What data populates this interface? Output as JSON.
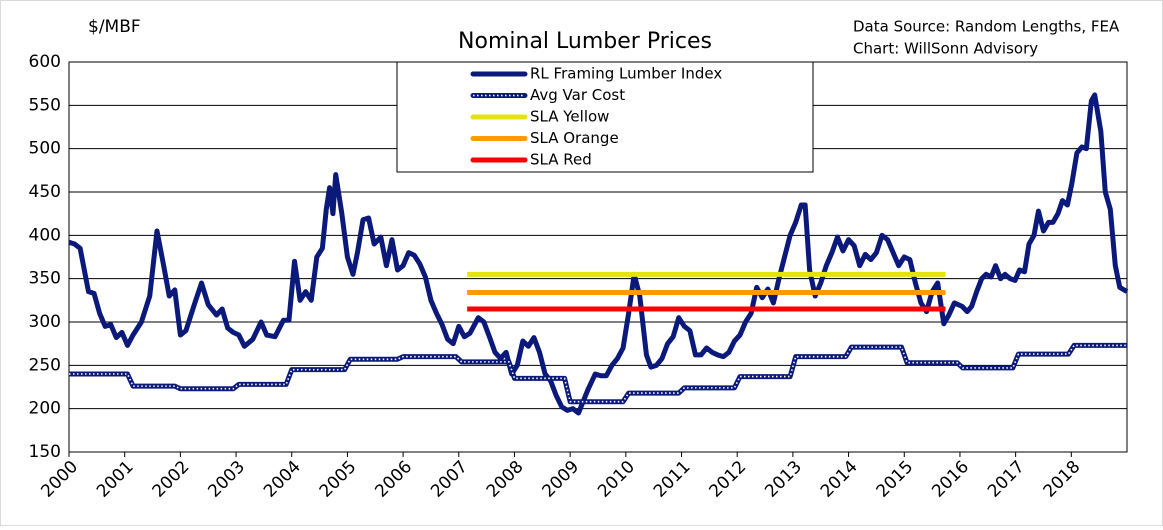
{
  "chart_data": {
    "type": "line",
    "title": "Nominal Lumber Prices",
    "y_axis_label": "$/MBF",
    "source_lines": [
      "Data Source: Random Lengths, FEA",
      "Chart:  WillSonn Advisory"
    ],
    "xlim": [
      2000,
      2019
    ],
    "xticks": [
      2000,
      2001,
      2002,
      2003,
      2004,
      2005,
      2006,
      2007,
      2008,
      2009,
      2010,
      2011,
      2012,
      2013,
      2014,
      2015,
      2016,
      2017,
      2018
    ],
    "ylim": [
      150,
      600
    ],
    "yticks": [
      150,
      200,
      250,
      300,
      350,
      400,
      450,
      500,
      550,
      600
    ],
    "grid": true,
    "series": [
      {
        "name": "RL Framing Lumber Index",
        "color": "#0b1a7a",
        "style": "solid",
        "width": 5,
        "x": [
          2000.0,
          2000.1,
          2000.2,
          2000.35,
          2000.45,
          2000.55,
          2000.65,
          2000.75,
          2000.85,
          2000.95,
          2001.05,
          2001.15,
          2001.3,
          2001.45,
          2001.58,
          2001.7,
          2001.8,
          2001.9,
          2002.0,
          2002.1,
          2002.25,
          2002.38,
          2002.5,
          2002.65,
          2002.75,
          2002.85,
          2002.95,
          2003.05,
          2003.15,
          2003.3,
          2003.45,
          2003.55,
          2003.7,
          2003.85,
          2003.95,
          2004.05,
          2004.15,
          2004.25,
          2004.35,
          2004.45,
          2004.55,
          2004.62,
          2004.68,
          2004.74,
          2004.79,
          2004.9,
          2005.0,
          2005.1,
          2005.18,
          2005.28,
          2005.38,
          2005.48,
          2005.6,
          2005.7,
          2005.8,
          2005.9,
          2006.0,
          2006.1,
          2006.2,
          2006.3,
          2006.4,
          2006.5,
          2006.6,
          2006.7,
          2006.8,
          2006.9,
          2007.0,
          2007.1,
          2007.2,
          2007.35,
          2007.45,
          2007.55,
          2007.65,
          2007.75,
          2007.85,
          2007.95,
          2008.05,
          2008.15,
          2008.25,
          2008.35,
          2008.45,
          2008.55,
          2008.65,
          2008.75,
          2008.85,
          2008.95,
          2009.05,
          2009.15,
          2009.32,
          2009.45,
          2009.55,
          2009.65,
          2009.75,
          2009.85,
          2009.95,
          2010.05,
          2010.15,
          2010.25,
          2010.37,
          2010.45,
          2010.55,
          2010.65,
          2010.75,
          2010.85,
          2010.95,
          2011.05,
          2011.15,
          2011.25,
          2011.35,
          2011.45,
          2011.55,
          2011.65,
          2011.75,
          2011.85,
          2011.95,
          2012.05,
          2012.15,
          2012.25,
          2012.35,
          2012.45,
          2012.55,
          2012.65,
          2012.75,
          2012.85,
          2012.95,
          2013.05,
          2013.15,
          2013.22,
          2013.3,
          2013.4,
          2013.5,
          2013.6,
          2013.7,
          2013.8,
          2013.9,
          2014.0,
          2014.1,
          2014.2,
          2014.3,
          2014.4,
          2014.5,
          2014.6,
          2014.7,
          2014.8,
          2014.9,
          2015.0,
          2015.1,
          2015.2,
          2015.3,
          2015.4,
          2015.5,
          2015.6,
          2015.71,
          2015.8,
          2015.9,
          2016.04,
          2016.13,
          2016.21,
          2016.3,
          2016.39,
          2016.47,
          2016.56,
          2016.64,
          2016.73,
          2016.81,
          2016.9,
          2016.99,
          2017.07,
          2017.16,
          2017.24,
          2017.33,
          2017.41,
          2017.5,
          2017.59,
          2017.67,
          2017.76,
          2017.84,
          2017.93,
          2018.01,
          2018.1,
          2018.19,
          2018.27,
          2018.36,
          2018.42,
          2018.53,
          2018.61,
          2018.7,
          2018.79,
          2018.87,
          2019.0
        ],
        "values": [
          392,
          390,
          385,
          335,
          333,
          310,
          295,
          297,
          282,
          288,
          273,
          285,
          300,
          330,
          405,
          365,
          330,
          337,
          285,
          290,
          320,
          345,
          320,
          308,
          315,
          293,
          288,
          285,
          272,
          280,
          300,
          285,
          283,
          302,
          302,
          370,
          325,
          335,
          325,
          375,
          385,
          430,
          455,
          425,
          470,
          425,
          375,
          355,
          380,
          418,
          420,
          390,
          398,
          365,
          395,
          360,
          365,
          380,
          377,
          367,
          352,
          325,
          310,
          297,
          280,
          275,
          295,
          283,
          287,
          305,
          300,
          283,
          265,
          258,
          265,
          240,
          250,
          278,
          272,
          282,
          265,
          240,
          232,
          215,
          202,
          198,
          200,
          195,
          222,
          240,
          238,
          238,
          250,
          258,
          270,
          310,
          355,
          330,
          262,
          248,
          250,
          258,
          275,
          283,
          305,
          295,
          290,
          262,
          262,
          270,
          265,
          262,
          260,
          265,
          278,
          285,
          300,
          310,
          340,
          328,
          338,
          322,
          350,
          375,
          400,
          415,
          435,
          435,
          360,
          330,
          345,
          365,
          380,
          398,
          382,
          395,
          388,
          365,
          378,
          372,
          380,
          400,
          395,
          380,
          365,
          375,
          372,
          345,
          322,
          312,
          335,
          345,
          298,
          308,
          322,
          318,
          312,
          318,
          335,
          350,
          355,
          352,
          365,
          350,
          355,
          350,
          348,
          360,
          358,
          390,
          400,
          428,
          405,
          415,
          415,
          425,
          440,
          435,
          460,
          495,
          502,
          500,
          555,
          562,
          520,
          450,
          430,
          365,
          340,
          335
        ]
      },
      {
        "name": "Avg Var Cost",
        "color": "#0b1a7a",
        "style": "dotted",
        "width": 5,
        "x": [
          2000,
          2001.05,
          2001.15,
          2001.9,
          2002,
          2002.95,
          2003.05,
          2003.9,
          2004,
          2004.95,
          2005.05,
          2005.9,
          2006,
          2006.95,
          2007.05,
          2007.9,
          2008,
          2008.9,
          2009,
          2009.95,
          2010.05,
          2010.95,
          2011.05,
          2011.95,
          2012.05,
          2012.95,
          2013.05,
          2013.95,
          2014.05,
          2014.95,
          2015.05,
          2015.95,
          2016.05,
          2016.95,
          2017.05,
          2017.95,
          2018.05,
          2019
        ],
        "values": [
          240,
          240,
          226,
          226,
          223,
          223,
          228,
          228,
          245,
          245,
          257,
          257,
          260,
          260,
          254,
          254,
          235,
          235,
          208,
          208,
          218,
          218,
          224,
          224,
          237,
          237,
          260,
          260,
          271,
          271,
          253,
          253,
          247,
          247,
          263,
          263,
          273,
          273
        ]
      },
      {
        "name": "SLA Yellow",
        "color": "#e4e40c",
        "style": "solid",
        "width": 5,
        "x": [
          2007.15,
          2015.74
        ],
        "values": [
          355,
          355
        ]
      },
      {
        "name": "SLA Orange",
        "color": "#ff9900",
        "style": "solid",
        "width": 5,
        "x": [
          2007.15,
          2015.74
        ],
        "values": [
          334,
          334
        ]
      },
      {
        "name": "SLA Red",
        "color": "#ff0000",
        "style": "solid",
        "width": 5,
        "x": [
          2007.15,
          2015.74
        ],
        "values": [
          315,
          315
        ]
      }
    ]
  }
}
